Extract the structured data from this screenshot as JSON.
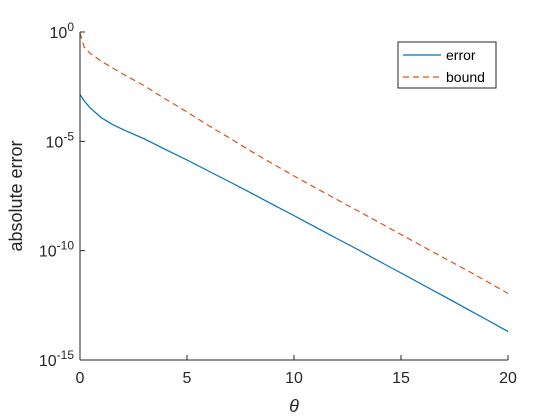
{
  "chart_data": {
    "type": "line",
    "scale": {
      "x": "linear",
      "y": "log"
    },
    "xlabel": "θ",
    "ylabel": "absolute error",
    "xlim": [
      0,
      20
    ],
    "ylim": [
      1e-15,
      1
    ],
    "x_ticks": [
      0,
      5,
      10,
      15,
      20
    ],
    "y_ticks": [
      {
        "value": 1e-15,
        "base": "10",
        "exp": "-15"
      },
      {
        "value": 1e-10,
        "base": "10",
        "exp": "-10"
      },
      {
        "value": 1e-05,
        "base": "10",
        "exp": "-5"
      },
      {
        "value": 1,
        "base": "10",
        "exp": "0"
      }
    ],
    "grid": false,
    "legend_position": "top-right",
    "series": [
      {
        "name": "error",
        "color": "#0072BD",
        "dash": "solid",
        "points": [
          [
            0,
            0.0014
          ],
          [
            0.2,
            0.0007
          ],
          [
            0.5,
            0.00032
          ],
          [
            1,
            0.00012
          ],
          [
            1.5,
            6e-05
          ],
          [
            2,
            3.5e-05
          ],
          [
            3,
            1.3e-05
          ],
          [
            4,
            4.2e-06
          ],
          [
            5,
            1.4e-06
          ],
          [
            6,
            4.4e-07
          ],
          [
            7,
            1.4e-07
          ],
          [
            8,
            4.3e-08
          ],
          [
            9,
            1.3e-08
          ],
          [
            10,
            4e-09
          ],
          [
            11,
            1.2e-09
          ],
          [
            12,
            3.6e-10
          ],
          [
            13,
            1.1e-10
          ],
          [
            14,
            3.2e-11
          ],
          [
            15,
            9.5e-12
          ],
          [
            16,
            2.8e-12
          ],
          [
            17,
            8.3e-13
          ],
          [
            18,
            2.4e-13
          ],
          [
            19,
            7e-14
          ],
          [
            20,
            2e-14
          ]
        ]
      },
      {
        "name": "bound",
        "color": "#D95319",
        "dash": "dashed",
        "points": [
          [
            0,
            0.9
          ],
          [
            0.2,
            0.2
          ],
          [
            0.5,
            0.1
          ],
          [
            1,
            0.046
          ],
          [
            2,
            0.012
          ],
          [
            3,
            0.0035
          ],
          [
            4,
            0.00085
          ],
          [
            5,
            0.00022
          ],
          [
            6,
            5.3e-05
          ],
          [
            7,
            1.4e-05
          ],
          [
            8,
            3.5e-06
          ],
          [
            9,
            9.5e-07
          ],
          [
            10,
            2.6e-07
          ],
          [
            11,
            7.5e-08
          ],
          [
            12,
            2.2e-08
          ],
          [
            13,
            6.5e-09
          ],
          [
            14,
            1.9e-09
          ],
          [
            15,
            5.5e-10
          ],
          [
            16,
            1.6e-10
          ],
          [
            17,
            4.7e-11
          ],
          [
            18,
            1.4e-11
          ],
          [
            19,
            4e-12
          ],
          [
            20,
            1.1e-12
          ]
        ]
      }
    ]
  }
}
